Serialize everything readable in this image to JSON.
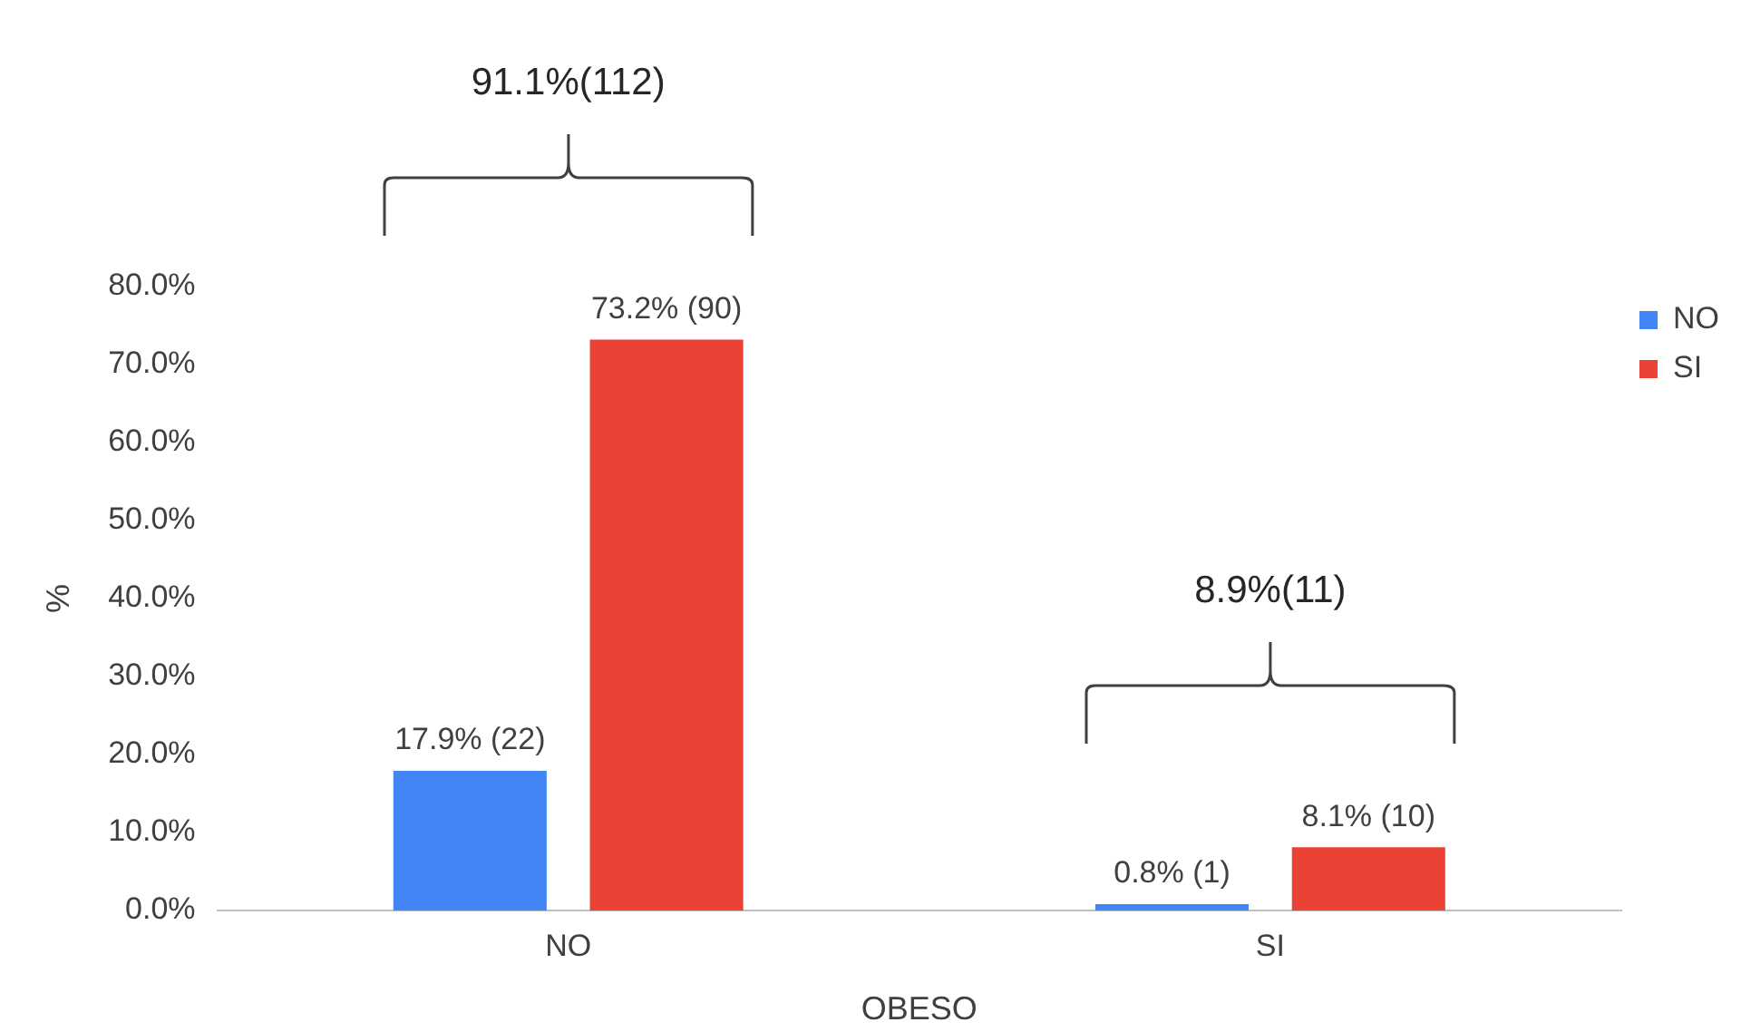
{
  "chart_data": {
    "type": "bar",
    "xlabel": "OBESO",
    "ylabel": "%",
    "categories": [
      "NO",
      "SI"
    ],
    "series": [
      {
        "name": "NO",
        "color": "#4285f4",
        "values": [
          17.9,
          0.8
        ],
        "value_labels": [
          "17.9% (22)",
          "0.8% (1)"
        ]
      },
      {
        "name": "SI",
        "color": "#ea4335",
        "values": [
          73.2,
          8.1
        ],
        "value_labels": [
          "73.2% (90)",
          "8.1% (10)"
        ]
      }
    ],
    "ylim": [
      0,
      80
    ],
    "yticks": [
      {
        "value": 0,
        "label": "0.0%"
      },
      {
        "value": 10,
        "label": "10.0%"
      },
      {
        "value": 20,
        "label": "20.0%"
      },
      {
        "value": 30,
        "label": "30.0%"
      },
      {
        "value": 40,
        "label": "40.0%"
      },
      {
        "value": 50,
        "label": "50.0%"
      },
      {
        "value": 60,
        "label": "60.0%"
      },
      {
        "value": 70,
        "label": "70.0%"
      },
      {
        "value": 80,
        "label": "80.0%"
      }
    ],
    "annotations": [
      "91.1%(112)",
      "8.9%(11)"
    ],
    "legend": "right",
    "grid": false
  }
}
